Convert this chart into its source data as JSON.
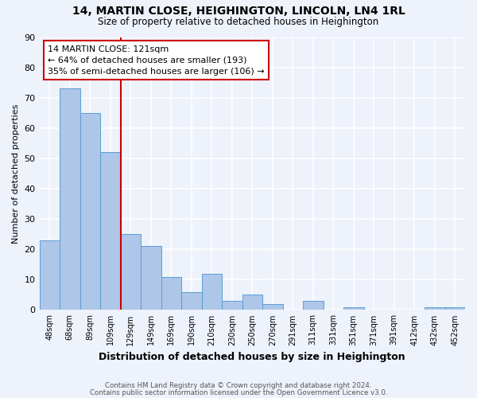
{
  "title1": "14, MARTIN CLOSE, HEIGHINGTON, LINCOLN, LN4 1RL",
  "title2": "Size of property relative to detached houses in Heighington",
  "xlabel": "Distribution of detached houses by size in Heighington",
  "ylabel": "Number of detached properties",
  "footnote1": "Contains HM Land Registry data © Crown copyright and database right 2024.",
  "footnote2": "Contains public sector information licensed under the Open Government Licence v3.0.",
  "categories": [
    "48sqm",
    "68sqm",
    "89sqm",
    "109sqm",
    "129sqm",
    "149sqm",
    "169sqm",
    "190sqm",
    "210sqm",
    "230sqm",
    "250sqm",
    "270sqm",
    "291sqm",
    "311sqm",
    "331sqm",
    "351sqm",
    "371sqm",
    "391sqm",
    "412sqm",
    "432sqm",
    "452sqm"
  ],
  "values": [
    23,
    73,
    65,
    52,
    25,
    21,
    11,
    6,
    12,
    3,
    5,
    2,
    0,
    3,
    0,
    1,
    0,
    0,
    0,
    1,
    1
  ],
  "bar_color": "#aec6e8",
  "bar_edge_color": "#5a9fd4",
  "background_color": "#eef2fb",
  "grid_color": "#ffffff",
  "vline_x": 3.5,
  "vline_color": "#cc0000",
  "annotation_line1": "14 MARTIN CLOSE: 121sqm",
  "annotation_line2": "← 64% of detached houses are smaller (193)",
  "annotation_line3": "35% of semi-detached houses are larger (106) →",
  "annotation_box_color": "#cc0000",
  "annotation_box_facecolor": "#ffffff",
  "ylim": [
    0,
    90
  ],
  "yticks": [
    0,
    10,
    20,
    30,
    40,
    50,
    60,
    70,
    80,
    90
  ]
}
